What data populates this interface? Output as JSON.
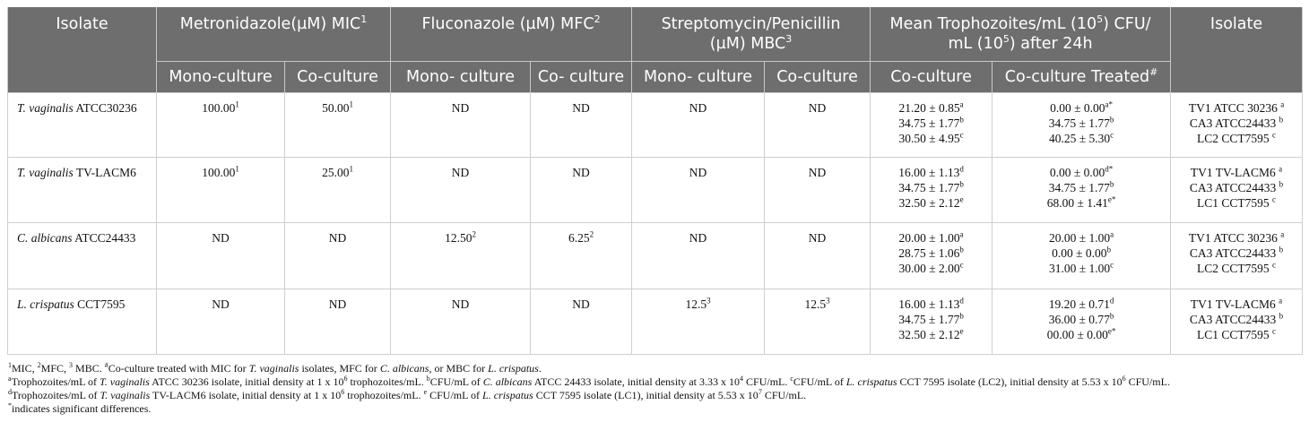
{
  "header": {
    "col_isolate": "Isolate",
    "metronidazole": "Metronidazole(µM) MIC",
    "metronidazole_sup": "1",
    "fluconazole": "Fluconazole (µM) MFC",
    "fluconazole_sup": "2",
    "strepto_line1": "Streptomycin/Penicillin",
    "strepto_line2": "(µM) MBC",
    "strepto_sup": "3",
    "mean_part1": "Mean Trophozoites/mL (10",
    "mean_sup1": "5",
    "mean_part2": ") CFU/",
    "mean_part3": "mL (10",
    "mean_sup2": "5",
    "mean_part4": ") after 24h",
    "col_isolate2": "Isolate",
    "sub_mono": "Mono-culture",
    "sub_co": "Co-culture",
    "sub_mono_sp": "Mono- culture",
    "sub_co_sp": "Co- culture",
    "sub_co_treated": "Co-culture Treated",
    "sub_co_treated_sup": "#"
  },
  "rows": [
    {
      "species": "T. vaginalis",
      "strain": " ATCC30236",
      "met_mono": "100.00",
      "met_mono_sup": "1",
      "met_co": "50.00",
      "met_co_sup": "1",
      "flu_mono": "ND",
      "flu_co": "ND",
      "str_mono": "ND",
      "str_mono_sup": "",
      "str_co": "ND",
      "str_co_sup": "",
      "co": [
        [
          "21.20 ± 0.85",
          "a"
        ],
        [
          "34.75 ± 1.77",
          "b"
        ],
        [
          "30.50 ± 4.95",
          "c"
        ]
      ],
      "treated": [
        [
          "0.00 ± 0.00",
          "a*"
        ],
        [
          "34.75 ± 1.77",
          "b"
        ],
        [
          "40.25 ± 5.30",
          "c"
        ]
      ],
      "isolates": [
        [
          "TV1 ATCC 30236 ",
          "a"
        ],
        [
          "CA3 ATCC24433 ",
          "b"
        ],
        [
          "LC2 CCT7595 ",
          "c"
        ]
      ]
    },
    {
      "species": "T. vaginalis",
      "strain": " TV-LACM6",
      "met_mono": "100.00",
      "met_mono_sup": "1",
      "met_co": "25.00",
      "met_co_sup": "1",
      "flu_mono": "ND",
      "flu_co": "ND",
      "str_mono": "ND",
      "str_mono_sup": "",
      "str_co": "ND",
      "str_co_sup": "",
      "co": [
        [
          "16.00 ± 1.13",
          "d"
        ],
        [
          "34.75 ± 1.77",
          "b"
        ],
        [
          "32.50 ± 2.12",
          "e"
        ]
      ],
      "treated": [
        [
          "0.00 ± 0.00",
          "d*"
        ],
        [
          "34.75 ± 1.77",
          "b"
        ],
        [
          "68.00 ± 1.41",
          "e*"
        ]
      ],
      "isolates": [
        [
          "TV1 TV-LACM6 ",
          "a"
        ],
        [
          "CA3 ATCC24433 ",
          "b"
        ],
        [
          "LC1 CCT7595 ",
          "c"
        ]
      ]
    },
    {
      "species": "C. albicans",
      "strain": " ATCC24433",
      "met_mono": "ND",
      "met_mono_sup": "",
      "met_co": "ND",
      "met_co_sup": "",
      "flu_mono": "12.50",
      "flu_mono_sup": "2",
      "flu_co": "6.25",
      "flu_co_sup": "2",
      "str_mono": "ND",
      "str_mono_sup": "",
      "str_co": "ND",
      "str_co_sup": "",
      "co": [
        [
          "20.00 ± 1.00",
          "a"
        ],
        [
          "28.75 ± 1.06",
          "b"
        ],
        [
          "30.00 ± 2.00",
          "c"
        ]
      ],
      "treated": [
        [
          "20.00 ± 1.00",
          "a"
        ],
        [
          "0.00 ± 0.00",
          "b"
        ],
        [
          "31.00 ± 1.00",
          "c"
        ]
      ],
      "isolates": [
        [
          "TV1 ATCC 30236 ",
          "a"
        ],
        [
          "CA3 ATCC24433 ",
          "b"
        ],
        [
          "LC2 CCT7595 ",
          "c"
        ]
      ]
    },
    {
      "species": "L. crispatus",
      "strain": " CCT7595",
      "met_mono": "ND",
      "met_mono_sup": "",
      "met_co": "ND",
      "met_co_sup": "",
      "flu_mono": "ND",
      "flu_co": "ND",
      "str_mono": "12.5",
      "str_mono_sup": "3",
      "str_co": "12.5",
      "str_co_sup": "3",
      "co": [
        [
          "16.00 ± 1.13",
          "d"
        ],
        [
          "34.75 ± 1.77",
          "b"
        ],
        [
          "32.50 ± 2.12",
          "e"
        ]
      ],
      "treated": [
        [
          "19.20 ± 0.71",
          "d"
        ],
        [
          "36.00 ± 0.77",
          "b"
        ],
        [
          "00.00 ± 0.00",
          "e*"
        ]
      ],
      "isolates": [
        [
          "TV1 TV-LACM6 ",
          "a"
        ],
        [
          "CA3 ATCC24433 ",
          "b"
        ],
        [
          "LC1 CCT7595 ",
          "c"
        ]
      ]
    }
  ],
  "footnotes": [
    [
      [
        "sup",
        "1"
      ],
      [
        "t",
        "MIC, "
      ],
      [
        "sup",
        "2"
      ],
      [
        "t",
        "MFC, "
      ],
      [
        "sup",
        "3"
      ],
      [
        "t",
        " MBC. "
      ],
      [
        "sup",
        "#"
      ],
      [
        "t",
        "Co-culture treated with MIC for "
      ],
      [
        "i",
        "T. vaginalis"
      ],
      [
        "t",
        " isolates, MFC for "
      ],
      [
        "i",
        "C. albicans"
      ],
      [
        "t",
        ", or MBC for "
      ],
      [
        "i",
        "L. crispatus"
      ],
      [
        "t",
        "."
      ]
    ],
    [
      [
        "sup",
        "a"
      ],
      [
        "t",
        "Trophozoites/mL of "
      ],
      [
        "i",
        "T. vaginalis"
      ],
      [
        "t",
        " ATCC 30236 isolate, initial density at 1 x 10"
      ],
      [
        "sup",
        "6"
      ],
      [
        "t",
        " trophozoites/mL. "
      ],
      [
        "sup",
        "b"
      ],
      [
        "t",
        "CFU/mL of "
      ],
      [
        "i",
        "C. albicans"
      ],
      [
        "t",
        " ATCC 24433 isolate, initial density at 3.33 x 10"
      ],
      [
        "sup",
        "4"
      ],
      [
        "t",
        " CFU/mL. "
      ],
      [
        "sup",
        "c"
      ],
      [
        "t",
        "CFU/mL of "
      ],
      [
        "i",
        "L. crispatus"
      ],
      [
        "t",
        " CCT 7595 isolate (LC2), initial density at 5.53 x 10"
      ],
      [
        "sup",
        "6"
      ],
      [
        "t",
        " CFU/mL."
      ]
    ],
    [
      [
        "sup",
        "d"
      ],
      [
        "t",
        "Trophozoites/mL of "
      ],
      [
        "i",
        "T. vaginalis"
      ],
      [
        "t",
        " TV-LACM6 isolate, initial density at 1 x 10"
      ],
      [
        "sup",
        "6"
      ],
      [
        "t",
        " trophozoites/mL. "
      ],
      [
        "sup",
        "e"
      ],
      [
        "t",
        " CFU/mL of "
      ],
      [
        "i",
        "L. crispatus"
      ],
      [
        "t",
        " CCT 7595 isolate (LC1), initial density at 5.53 x 10"
      ],
      [
        "sup",
        "7"
      ],
      [
        "t",
        " CFU/mL."
      ]
    ],
    [
      [
        "sup",
        "*"
      ],
      [
        "t",
        "indicates significant differences."
      ]
    ]
  ]
}
